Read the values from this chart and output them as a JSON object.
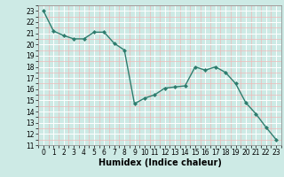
{
  "x": [
    0,
    1,
    2,
    3,
    4,
    5,
    6,
    7,
    8,
    9,
    10,
    11,
    12,
    13,
    14,
    15,
    16,
    17,
    18,
    19,
    20,
    21,
    22,
    23
  ],
  "y": [
    23.0,
    21.2,
    20.8,
    20.5,
    20.5,
    21.1,
    21.1,
    20.1,
    19.5,
    14.7,
    15.2,
    15.5,
    16.1,
    16.2,
    16.3,
    18.0,
    17.7,
    18.0,
    17.5,
    16.5,
    14.8,
    13.8,
    12.6,
    11.5
  ],
  "line_color": "#2e7d6e",
  "marker": "D",
  "marker_size": 2.0,
  "bg_color": "#cdeae5",
  "grid_major_color": "#ffffff",
  "grid_minor_color": "#f0b8b8",
  "xlabel": "Humidex (Indice chaleur)",
  "xlim": [
    -0.5,
    23.5
  ],
  "ylim": [
    11,
    23.5
  ],
  "yticks": [
    11,
    12,
    13,
    14,
    15,
    16,
    17,
    18,
    19,
    20,
    21,
    22,
    23
  ],
  "xticks": [
    0,
    1,
    2,
    3,
    4,
    5,
    6,
    7,
    8,
    9,
    10,
    11,
    12,
    13,
    14,
    15,
    16,
    17,
    18,
    19,
    20,
    21,
    22,
    23
  ],
  "tick_fontsize": 5.5,
  "label_fontsize": 7.0,
  "line_width": 1.0
}
